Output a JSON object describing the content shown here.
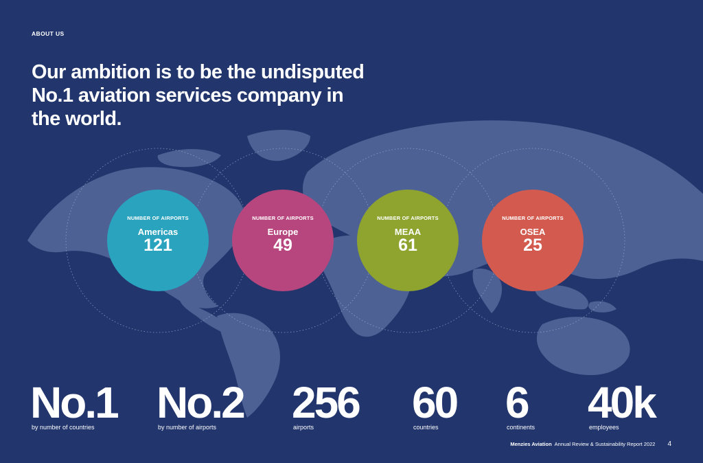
{
  "section_label": "ABOUT US",
  "headline": "Our ambition is to be the undisputed No.1 aviation services company in the world.",
  "circles": [
    {
      "caption": "NUMBER OF AIRPORTS",
      "region": "Americas",
      "value": "121",
      "color": "#2aa3bf"
    },
    {
      "caption": "NUMBER OF AIRPORTS",
      "region": "Europe",
      "value": "49",
      "color": "#b8467e"
    },
    {
      "caption": "NUMBER OF AIRPORTS",
      "region": "MEAA",
      "value": "61",
      "color": "#8ea42f"
    },
    {
      "caption": "NUMBER OF AIRPORTS",
      "region": "OSEA",
      "value": "25",
      "color": "#d25a4f"
    }
  ],
  "stats": [
    {
      "value": "No.1",
      "label": "by number of countries"
    },
    {
      "value": "No.2",
      "label": "by number of airports"
    },
    {
      "value": "256",
      "label": "airports"
    },
    {
      "value": "60",
      "label": "countries"
    },
    {
      "value": "6",
      "label": "continents"
    },
    {
      "value": "40k",
      "label": "employees"
    }
  ],
  "footer": {
    "brand": "Menzies Aviation",
    "report": "Annual Review & Sustainability Report 2022",
    "page_number": "4"
  },
  "colors": {
    "background": "#22366d",
    "map_land": "#5a6d9e"
  }
}
